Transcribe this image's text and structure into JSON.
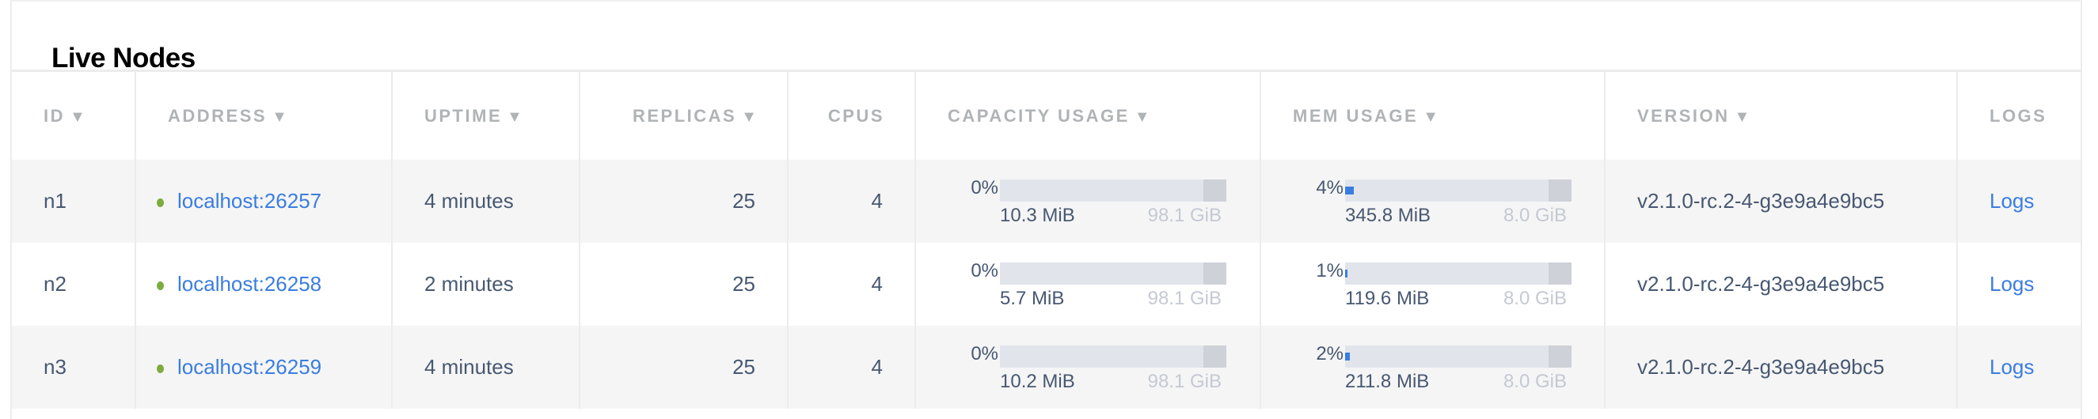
{
  "title": "Live Nodes",
  "columns": [
    {
      "label": "ID",
      "sortable": true
    },
    {
      "label": "ADDRESS",
      "sortable": true
    },
    {
      "label": "UPTIME",
      "sortable": true
    },
    {
      "label": "REPLICAS",
      "sortable": true
    },
    {
      "label": "CPUS",
      "sortable": false
    },
    {
      "label": "CAPACITY USAGE",
      "sortable": true
    },
    {
      "label": "MEM USAGE",
      "sortable": true
    },
    {
      "label": "VERSION",
      "sortable": true
    },
    {
      "label": "LOGS",
      "sortable": false
    }
  ],
  "sort_arrow": "▼",
  "rows": [
    {
      "id": "n1",
      "address": "localhost:26257",
      "status": "live",
      "uptime": "4 minutes",
      "replicas": "25",
      "cpus": "4",
      "capacity": {
        "percent_label": "0%",
        "percent": 0,
        "used": "10.3 MiB",
        "total": "98.1 GiB"
      },
      "mem": {
        "percent_label": "4%",
        "percent": 4,
        "used": "345.8 MiB",
        "total": "8.0 GiB"
      },
      "version": "v2.1.0-rc.2-4-g3e9a4e9bc5",
      "logs": "Logs"
    },
    {
      "id": "n2",
      "address": "localhost:26258",
      "status": "live",
      "uptime": "2 minutes",
      "replicas": "25",
      "cpus": "4",
      "capacity": {
        "percent_label": "0%",
        "percent": 0,
        "used": "5.7 MiB",
        "total": "98.1 GiB"
      },
      "mem": {
        "percent_label": "1%",
        "percent": 1,
        "used": "119.6 MiB",
        "total": "8.0 GiB"
      },
      "version": "v2.1.0-rc.2-4-g3e9a4e9bc5",
      "logs": "Logs"
    },
    {
      "id": "n3",
      "address": "localhost:26259",
      "status": "live",
      "uptime": "4 minutes",
      "replicas": "25",
      "cpus": "4",
      "capacity": {
        "percent_label": "0%",
        "percent": 0,
        "used": "10.2 MiB",
        "total": "98.1 GiB"
      },
      "mem": {
        "percent_label": "2%",
        "percent": 2,
        "used": "211.8 MiB",
        "total": "8.0 GiB"
      },
      "version": "v2.1.0-rc.2-4-g3e9a4e9bc5",
      "logs": "Logs"
    }
  ],
  "colors": {
    "link": "#3a7de1",
    "live_dot": "#7cac3e",
    "bar_fill": "#3a7de1",
    "bar_bg": "#e2e4ec",
    "row_stripe": "#f5f5f5"
  }
}
